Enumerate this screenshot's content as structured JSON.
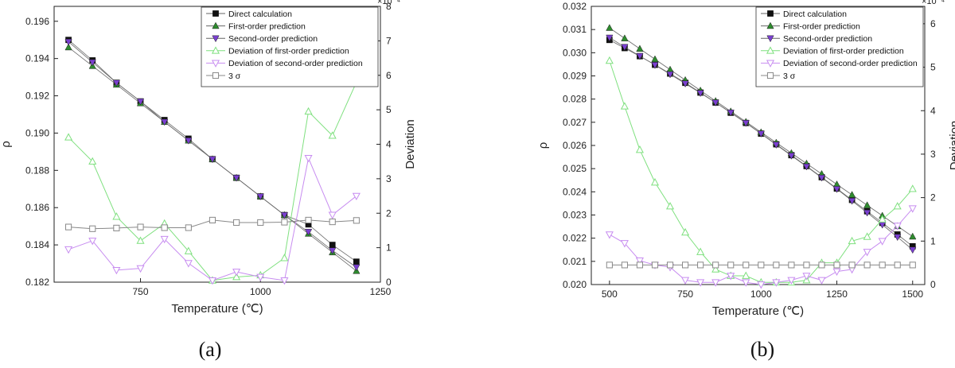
{
  "chart_data": [
    {
      "type": "line",
      "caption": "(a)",
      "xlabel": "Temperature (℃)",
      "ylabel": "ρ",
      "y2label": "Deviation",
      "y2_multiplier": "×10⁻⁴",
      "xlim": [
        570,
        1250
      ],
      "xticks": [
        750,
        1000,
        1250
      ],
      "ylim": [
        0.182,
        0.1968
      ],
      "yticks": [
        "0.182",
        "0.184",
        "0.186",
        "0.188",
        "0.190",
        "0.192",
        "0.194",
        "0.196"
      ],
      "y2lim": [
        0,
        8
      ],
      "y2ticks": [
        "0",
        "1",
        "2",
        "3",
        "4",
        "5",
        "6",
        "7",
        "8"
      ],
      "grid": false,
      "legend_position": "top-right",
      "x": [
        600,
        650,
        700,
        750,
        800,
        850,
        900,
        950,
        1000,
        1050,
        1100,
        1150,
        1200
      ],
      "series": [
        {
          "name": "Direct calculation",
          "axis": "left",
          "marker": "square-filled",
          "color": "#111111",
          "values": [
            0.195,
            0.1939,
            0.1927,
            0.1917,
            0.1907,
            0.1897,
            0.1886,
            0.1876,
            0.1866,
            0.1856,
            0.1851,
            0.184,
            0.1831
          ]
        },
        {
          "name": "First-order prediction",
          "axis": "left",
          "marker": "triangle-up-filled",
          "color": "#2e8b2e",
          "values": [
            0.1946,
            0.1936,
            0.1926,
            0.1916,
            0.1906,
            0.1896,
            0.1886,
            0.1876,
            0.1866,
            0.1856,
            0.1846,
            0.1836,
            0.1826
          ]
        },
        {
          "name": "Second-order prediction",
          "axis": "left",
          "marker": "triangle-down-filled",
          "color": "#7a3fd0",
          "values": [
            0.1949,
            0.1938,
            0.1927,
            0.1917,
            0.1906,
            0.1896,
            0.1886,
            0.1876,
            0.1866,
            0.1856,
            0.1847,
            0.1837,
            0.1828
          ]
        },
        {
          "name": "Deviation of first-order prediction",
          "axis": "right",
          "marker": "triangle-up-open",
          "color": "#7fe07f",
          "values": [
            4.2,
            3.5,
            1.9,
            1.2,
            1.7,
            0.9,
            0.05,
            0.15,
            0.2,
            0.7,
            4.95,
            4.25,
            5.8
          ]
        },
        {
          "name": "Deviation of second-order prediction",
          "axis": "right",
          "marker": "triangle-down-open",
          "color": "#c78cf0",
          "values": [
            0.95,
            1.2,
            0.35,
            0.4,
            1.25,
            0.55,
            0.05,
            0.3,
            0.15,
            0.05,
            3.6,
            1.95,
            2.5
          ]
        },
        {
          "name": "3 σ",
          "axis": "right",
          "marker": "square-open",
          "color": "#888888",
          "values": [
            1.6,
            1.55,
            1.57,
            1.6,
            1.58,
            1.58,
            1.8,
            1.73,
            1.73,
            1.74,
            1.8,
            1.75,
            1.79
          ]
        }
      ]
    },
    {
      "type": "line",
      "caption": "(b)",
      "xlabel": "Temperature (℃)",
      "ylabel": "ρ",
      "y2label": "Deviation",
      "y2_multiplier": "×10⁻⁴",
      "xlim": [
        440,
        1540
      ],
      "xticks": [
        500,
        750,
        1000,
        1250,
        1500
      ],
      "ylim": [
        0.02,
        0.032
      ],
      "yticks": [
        "0.020",
        "0.021",
        "0.022",
        "0.023",
        "0.024",
        "0.025",
        "0.026",
        "0.027",
        "0.028",
        "0.029",
        "0.030",
        "0.031",
        "0.032"
      ],
      "y2lim": [
        0,
        6.4
      ],
      "y2ticks": [
        "0",
        "1",
        "2",
        "3",
        "4",
        "5",
        "6"
      ],
      "grid": false,
      "legend_position": "top-right",
      "x": [
        500,
        550,
        600,
        650,
        700,
        750,
        800,
        850,
        900,
        950,
        1000,
        1050,
        1100,
        1150,
        1200,
        1250,
        1300,
        1350,
        1400,
        1450,
        1500
      ],
      "series": [
        {
          "name": "Direct calculation",
          "axis": "left",
          "marker": "square-filled",
          "color": "#111111",
          "values": [
            0.03055,
            0.0302,
            0.02985,
            0.02948,
            0.0291,
            0.0287,
            0.02828,
            0.02785,
            0.02741,
            0.02697,
            0.02651,
            0.02605,
            0.02558,
            0.02511,
            0.02463,
            0.02414,
            0.02365,
            0.02316,
            0.02266,
            0.02216,
            0.02165
          ]
        },
        {
          "name": "First-order prediction",
          "axis": "left",
          "marker": "triangle-up-filled",
          "color": "#2e8b2e",
          "values": [
            0.03107,
            0.03062,
            0.03017,
            0.02972,
            0.02927,
            0.02882,
            0.02837,
            0.02792,
            0.02747,
            0.02702,
            0.02657,
            0.02612,
            0.02567,
            0.02522,
            0.02477,
            0.02432,
            0.02387,
            0.02342,
            0.02297,
            0.02252,
            0.02207
          ]
        },
        {
          "name": "Second-order prediction",
          "axis": "left",
          "marker": "triangle-down-filled",
          "color": "#7a3fd0",
          "values": [
            0.03065,
            0.03025,
            0.02986,
            0.02947,
            0.02907,
            0.02867,
            0.02826,
            0.02785,
            0.02742,
            0.02697,
            0.02651,
            0.02603,
            0.02556,
            0.02509,
            0.02461,
            0.02412,
            0.02361,
            0.0231,
            0.02258,
            0.02205,
            0.0215
          ]
        },
        {
          "name": "Deviation of first-order prediction",
          "axis": "right",
          "marker": "triangle-up-open",
          "color": "#7fe07f",
          "values": [
            5.15,
            4.1,
            3.1,
            2.35,
            1.8,
            1.2,
            0.75,
            0.35,
            0.2,
            0.2,
            0.05,
            0.05,
            0.05,
            0.1,
            0.5,
            0.5,
            1.0,
            1.1,
            1.5,
            1.8,
            2.2
          ]
        },
        {
          "name": "Deviation of second-order prediction",
          "axis": "right",
          "marker": "triangle-down-open",
          "color": "#c78cf0",
          "values": [
            1.15,
            0.95,
            0.55,
            0.45,
            0.4,
            0.1,
            0.05,
            0.05,
            0.2,
            0.05,
            0.0,
            0.05,
            0.1,
            0.2,
            0.1,
            0.3,
            0.35,
            0.75,
            1.0,
            1.35,
            1.75
          ]
        },
        {
          "name": "3 σ",
          "axis": "right",
          "marker": "square-open",
          "color": "#888888",
          "values": [
            0.45,
            0.45,
            0.45,
            0.45,
            0.45,
            0.45,
            0.45,
            0.45,
            0.45,
            0.45,
            0.45,
            0.45,
            0.45,
            0.45,
            0.45,
            0.45,
            0.45,
            0.45,
            0.45,
            0.45,
            0.45
          ]
        }
      ]
    }
  ]
}
